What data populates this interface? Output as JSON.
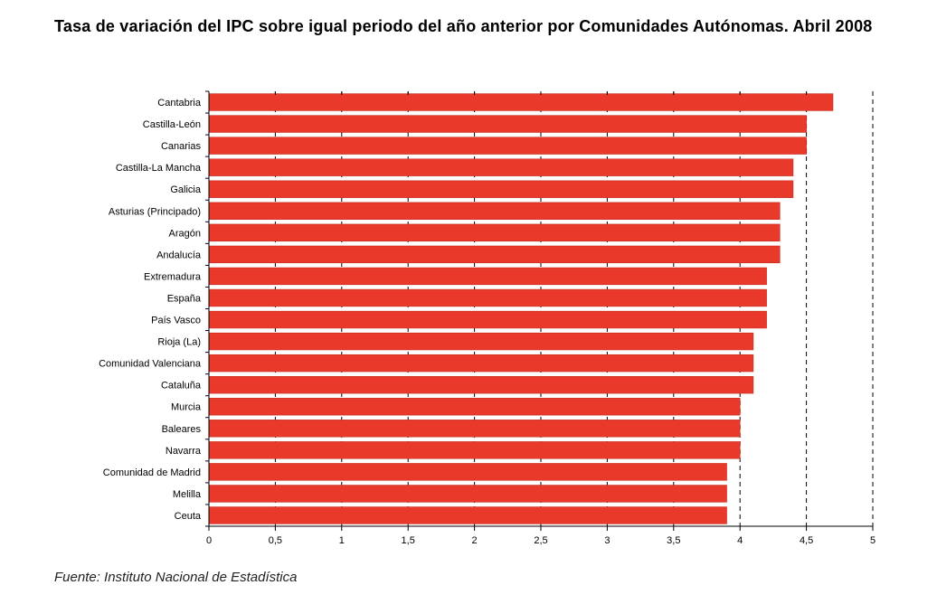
{
  "title": "Tasa de variación del IPC sobre igual periodo del año anterior por Comunidades Autónomas. Abril 2008",
  "source": "Fuente: Instituto Nacional de Estadística",
  "colors": {
    "bar": "#e8392a",
    "bar_edge": "#c42a1e",
    "grid": "#000000"
  },
  "chart_data": {
    "type": "bar",
    "orientation": "horizontal",
    "title": "Tasa de variación del IPC sobre igual periodo del año anterior por Comunidades Autónomas. Abril 2008",
    "categories": [
      "Cantabria",
      "Castilla-León",
      "Canarias",
      "Castilla-La Mancha",
      "Galicia",
      "Asturias (Principado)",
      "Aragón",
      "Andalucía",
      "Extremadura",
      "España",
      "País Vasco",
      "Rioja (La)",
      "Comunidad Valenciana",
      "Cataluña",
      "Murcia",
      "Baleares",
      "Navarra",
      "Comunidad de Madrid",
      "Melilla",
      "Ceuta"
    ],
    "values": [
      4.7,
      4.5,
      4.5,
      4.4,
      4.4,
      4.3,
      4.3,
      4.3,
      4.2,
      4.2,
      4.2,
      4.1,
      4.1,
      4.1,
      4.0,
      4.0,
      4.0,
      3.9,
      3.9,
      3.9
    ],
    "xlim": [
      0,
      5
    ],
    "xticks": [
      "0",
      "0,5",
      "1",
      "1,5",
      "2",
      "2,5",
      "3",
      "3,5",
      "4",
      "4,5",
      "5"
    ],
    "xtick_values": [
      0,
      0.5,
      1,
      1.5,
      2,
      2.5,
      3,
      3.5,
      4,
      4.5,
      5
    ],
    "grid": "vertical dashed",
    "legend": "none"
  }
}
